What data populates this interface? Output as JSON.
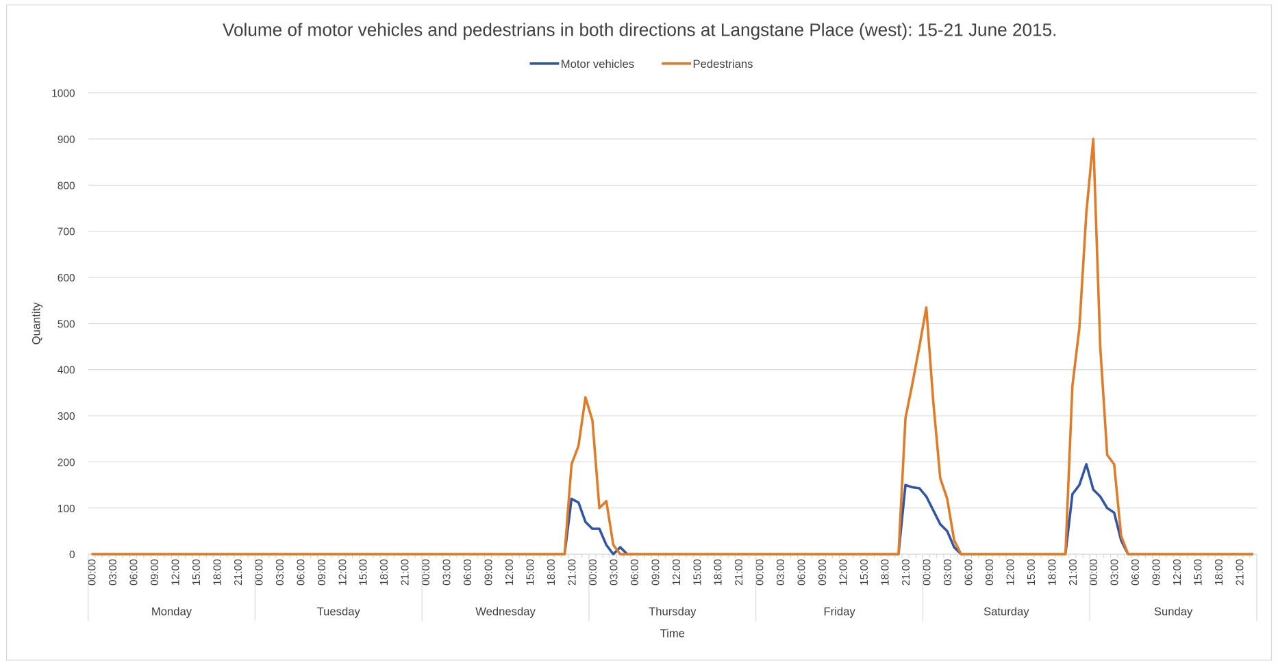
{
  "chart_data": {
    "type": "line",
    "title": "Volume of motor vehicles and pedestrians in both directions at Langstane Place (west): 15-21 June 2015.",
    "x_label": "Time",
    "y_label": "Quantity",
    "categories": [
      "00:00",
      null,
      null,
      "03:00",
      null,
      null,
      "06:00",
      null,
      null,
      "09:00",
      null,
      null,
      "12:00",
      null,
      null,
      "15:00",
      null,
      null,
      "18:00",
      null,
      null,
      "21:00",
      null,
      null,
      "00:00",
      null,
      null,
      "03:00",
      null,
      null,
      "06:00",
      null,
      null,
      "09:00",
      null,
      null,
      "12:00",
      null,
      null,
      "15:00",
      null,
      null,
      "18:00",
      null,
      null,
      "21:00",
      null,
      null,
      "00:00",
      null,
      null,
      "03:00",
      null,
      null,
      "06:00",
      null,
      null,
      "09:00",
      null,
      null,
      "12:00",
      null,
      null,
      "15:00",
      null,
      null,
      "18:00",
      null,
      null,
      "21:00",
      null,
      null,
      "00:00",
      null,
      null,
      "03:00",
      null,
      null,
      "06:00",
      null,
      null,
      "09:00",
      null,
      null,
      "12:00",
      null,
      null,
      "15:00",
      null,
      null,
      "18:00",
      null,
      null,
      "21:00",
      null,
      null,
      "00:00",
      null,
      null,
      "03:00",
      null,
      null,
      "06:00",
      null,
      null,
      "09:00",
      null,
      null,
      "12:00",
      null,
      null,
      "15:00",
      null,
      null,
      "18:00",
      null,
      null,
      "21:00",
      null,
      null,
      "00:00",
      null,
      null,
      "03:00",
      null,
      null,
      "06:00",
      null,
      null,
      "09:00",
      null,
      null,
      "12:00",
      null,
      null,
      "15:00",
      null,
      null,
      "18:00",
      null,
      null,
      "21:00",
      null,
      null,
      "00:00",
      null,
      null,
      "03:00",
      null,
      null,
      "06:00",
      null,
      null,
      "09:00",
      null,
      null,
      "12:00",
      null,
      null,
      "15:00",
      null,
      null,
      "18:00",
      null,
      null,
      "21:00",
      null,
      null
    ],
    "category_groups": [
      "Monday",
      "Tuesday",
      "Wednesday",
      "Thursday",
      "Friday",
      "Saturday",
      "Sunday"
    ],
    "series": [
      {
        "name": "Motor vehicles",
        "color": "#2f55a4",
        "values": [
          0,
          0,
          0,
          0,
          0,
          0,
          0,
          0,
          0,
          0,
          0,
          0,
          0,
          0,
          0,
          0,
          0,
          0,
          0,
          0,
          0,
          0,
          0,
          0,
          0,
          0,
          0,
          0,
          0,
          0,
          0,
          0,
          0,
          0,
          0,
          0,
          0,
          0,
          0,
          0,
          0,
          0,
          0,
          0,
          0,
          0,
          0,
          0,
          0,
          0,
          0,
          0,
          0,
          0,
          0,
          0,
          0,
          0,
          0,
          0,
          0,
          0,
          0,
          0,
          0,
          0,
          0,
          0,
          0,
          120,
          112,
          70,
          55,
          55,
          20,
          0,
          15,
          0,
          0,
          0,
          0,
          0,
          0,
          0,
          0,
          0,
          0,
          0,
          0,
          0,
          0,
          0,
          0,
          0,
          0,
          0,
          0,
          0,
          0,
          0,
          0,
          0,
          0,
          0,
          0,
          0,
          0,
          0,
          0,
          0,
          0,
          0,
          0,
          0,
          0,
          0,
          0,
          150,
          145,
          143,
          125,
          95,
          65,
          50,
          15,
          0,
          0,
          0,
          0,
          0,
          0,
          0,
          0,
          0,
          0,
          0,
          0,
          0,
          0,
          0,
          0,
          130,
          150,
          195,
          140,
          125,
          100,
          90,
          30,
          0,
          0,
          0,
          0,
          0,
          0,
          0,
          0,
          0,
          0,
          0,
          0,
          0,
          0,
          0,
          0,
          0,
          0,
          0
        ]
      },
      {
        "name": "Pedestrians",
        "color": "#e07b28",
        "values": [
          0,
          0,
          0,
          0,
          0,
          0,
          0,
          0,
          0,
          0,
          0,
          0,
          0,
          0,
          0,
          0,
          0,
          0,
          0,
          0,
          0,
          0,
          0,
          0,
          0,
          0,
          0,
          0,
          0,
          0,
          0,
          0,
          0,
          0,
          0,
          0,
          0,
          0,
          0,
          0,
          0,
          0,
          0,
          0,
          0,
          0,
          0,
          0,
          0,
          0,
          0,
          0,
          0,
          0,
          0,
          0,
          0,
          0,
          0,
          0,
          0,
          0,
          0,
          0,
          0,
          0,
          0,
          0,
          0,
          195,
          235,
          340,
          290,
          100,
          115,
          20,
          0,
          0,
          0,
          0,
          0,
          0,
          0,
          0,
          0,
          0,
          0,
          0,
          0,
          0,
          0,
          0,
          0,
          0,
          0,
          0,
          0,
          0,
          0,
          0,
          0,
          0,
          0,
          0,
          0,
          0,
          0,
          0,
          0,
          0,
          0,
          0,
          0,
          0,
          0,
          0,
          0,
          295,
          370,
          450,
          535,
          330,
          165,
          120,
          30,
          0,
          0,
          0,
          0,
          0,
          0,
          0,
          0,
          0,
          0,
          0,
          0,
          0,
          0,
          0,
          0,
          365,
          490,
          740,
          900,
          450,
          215,
          195,
          40,
          0,
          0,
          0,
          0,
          0,
          0,
          0,
          0,
          0,
          0,
          0,
          0,
          0,
          0,
          0,
          0,
          0,
          0,
          0
        ]
      }
    ],
    "ylim": [
      0,
      1000
    ],
    "yticks": [
      0,
      100,
      200,
      300,
      400,
      500,
      600,
      700,
      800,
      900,
      1000
    ],
    "grid": true,
    "legend": "top"
  }
}
